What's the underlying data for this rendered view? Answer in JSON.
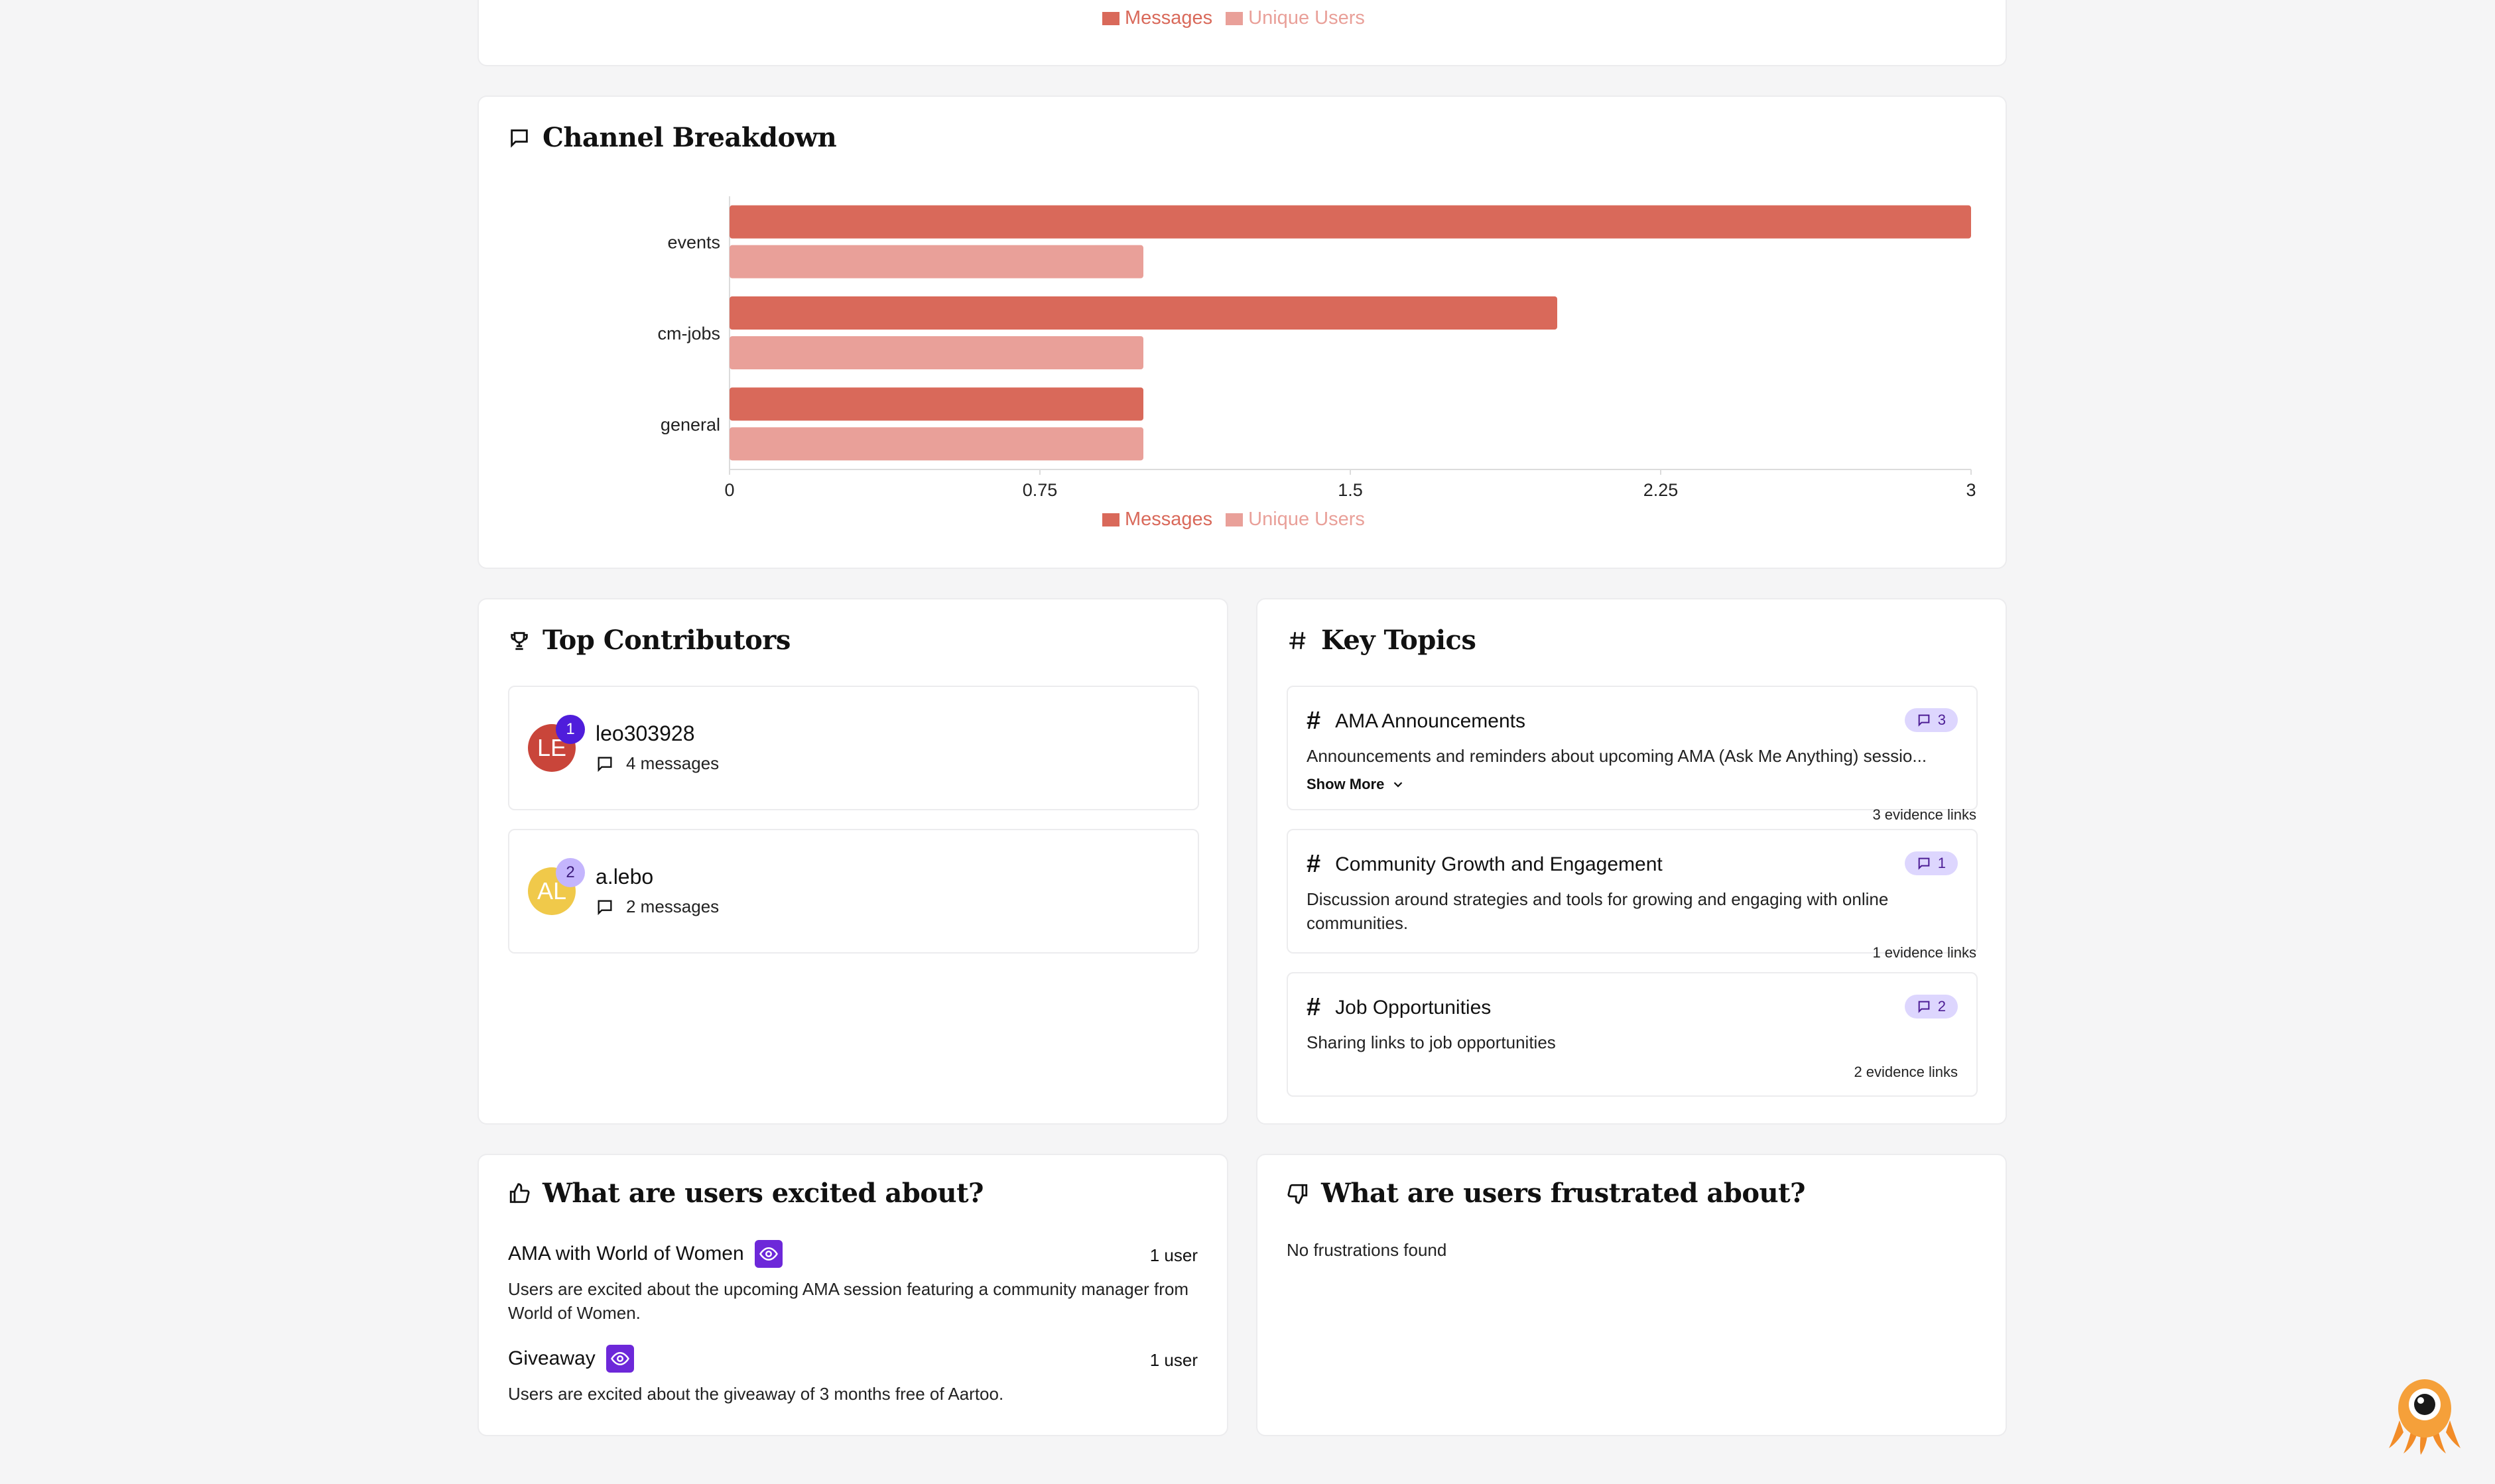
{
  "legend": {
    "messages": "Messages",
    "unique_users": "Unique Users"
  },
  "colors": {
    "messages": "#d9695a",
    "unique_users": "#e9a099",
    "accent": "#6d28d9"
  },
  "channel_breakdown": {
    "title": "Channel Breakdown",
    "chart_data": {
      "type": "bar",
      "orientation": "horizontal",
      "categories": [
        "events",
        "cm-jobs",
        "general"
      ],
      "series": [
        {
          "name": "Messages",
          "values": [
            3,
            2,
            1
          ]
        },
        {
          "name": "Unique Users",
          "values": [
            1,
            1,
            1
          ]
        }
      ],
      "xlim": [
        0,
        3
      ],
      "x_ticks": [
        "0",
        "0.75",
        "1.5",
        "2.25",
        "3"
      ],
      "legend_position": "bottom"
    }
  },
  "top_contributors": {
    "title": "Top Contributors",
    "items": [
      {
        "initials": "LE",
        "rank": "1",
        "name": "leo303928",
        "messages": "4 messages",
        "avatar_color": "#c9453a"
      },
      {
        "initials": "AL",
        "rank": "2",
        "name": "a.lebo",
        "messages": "2 messages",
        "avatar_color": "#f0c94a"
      }
    ]
  },
  "key_topics": {
    "title": "Key Topics",
    "items": [
      {
        "title": "AMA Announcements",
        "count": "3",
        "description": "Announcements and reminders about upcoming AMA (Ask Me Anything) sessio...",
        "show_more": "Show More",
        "evidence": "3 evidence links"
      },
      {
        "title": "Community Growth and Engagement",
        "count": "1",
        "description": "Discussion around strategies and tools for growing and engaging with online communities.",
        "evidence": "1 evidence links"
      },
      {
        "title": "Job Opportunities",
        "count": "2",
        "description": "Sharing links to job opportunities",
        "evidence": "2 evidence links"
      }
    ]
  },
  "excited": {
    "title": "What are users excited about?",
    "items": [
      {
        "title": "AMA with World of Women",
        "count": "1 user",
        "description": "Users are excited about the upcoming AMA session featuring a community manager from World of Women."
      },
      {
        "title": "Giveaway",
        "count": "1 user",
        "description": "Users are excited about the giveaway of 3 months free of Aartoo."
      }
    ]
  },
  "frustrated": {
    "title": "What are users frustrated about?",
    "empty_text": "No frustrations found"
  }
}
